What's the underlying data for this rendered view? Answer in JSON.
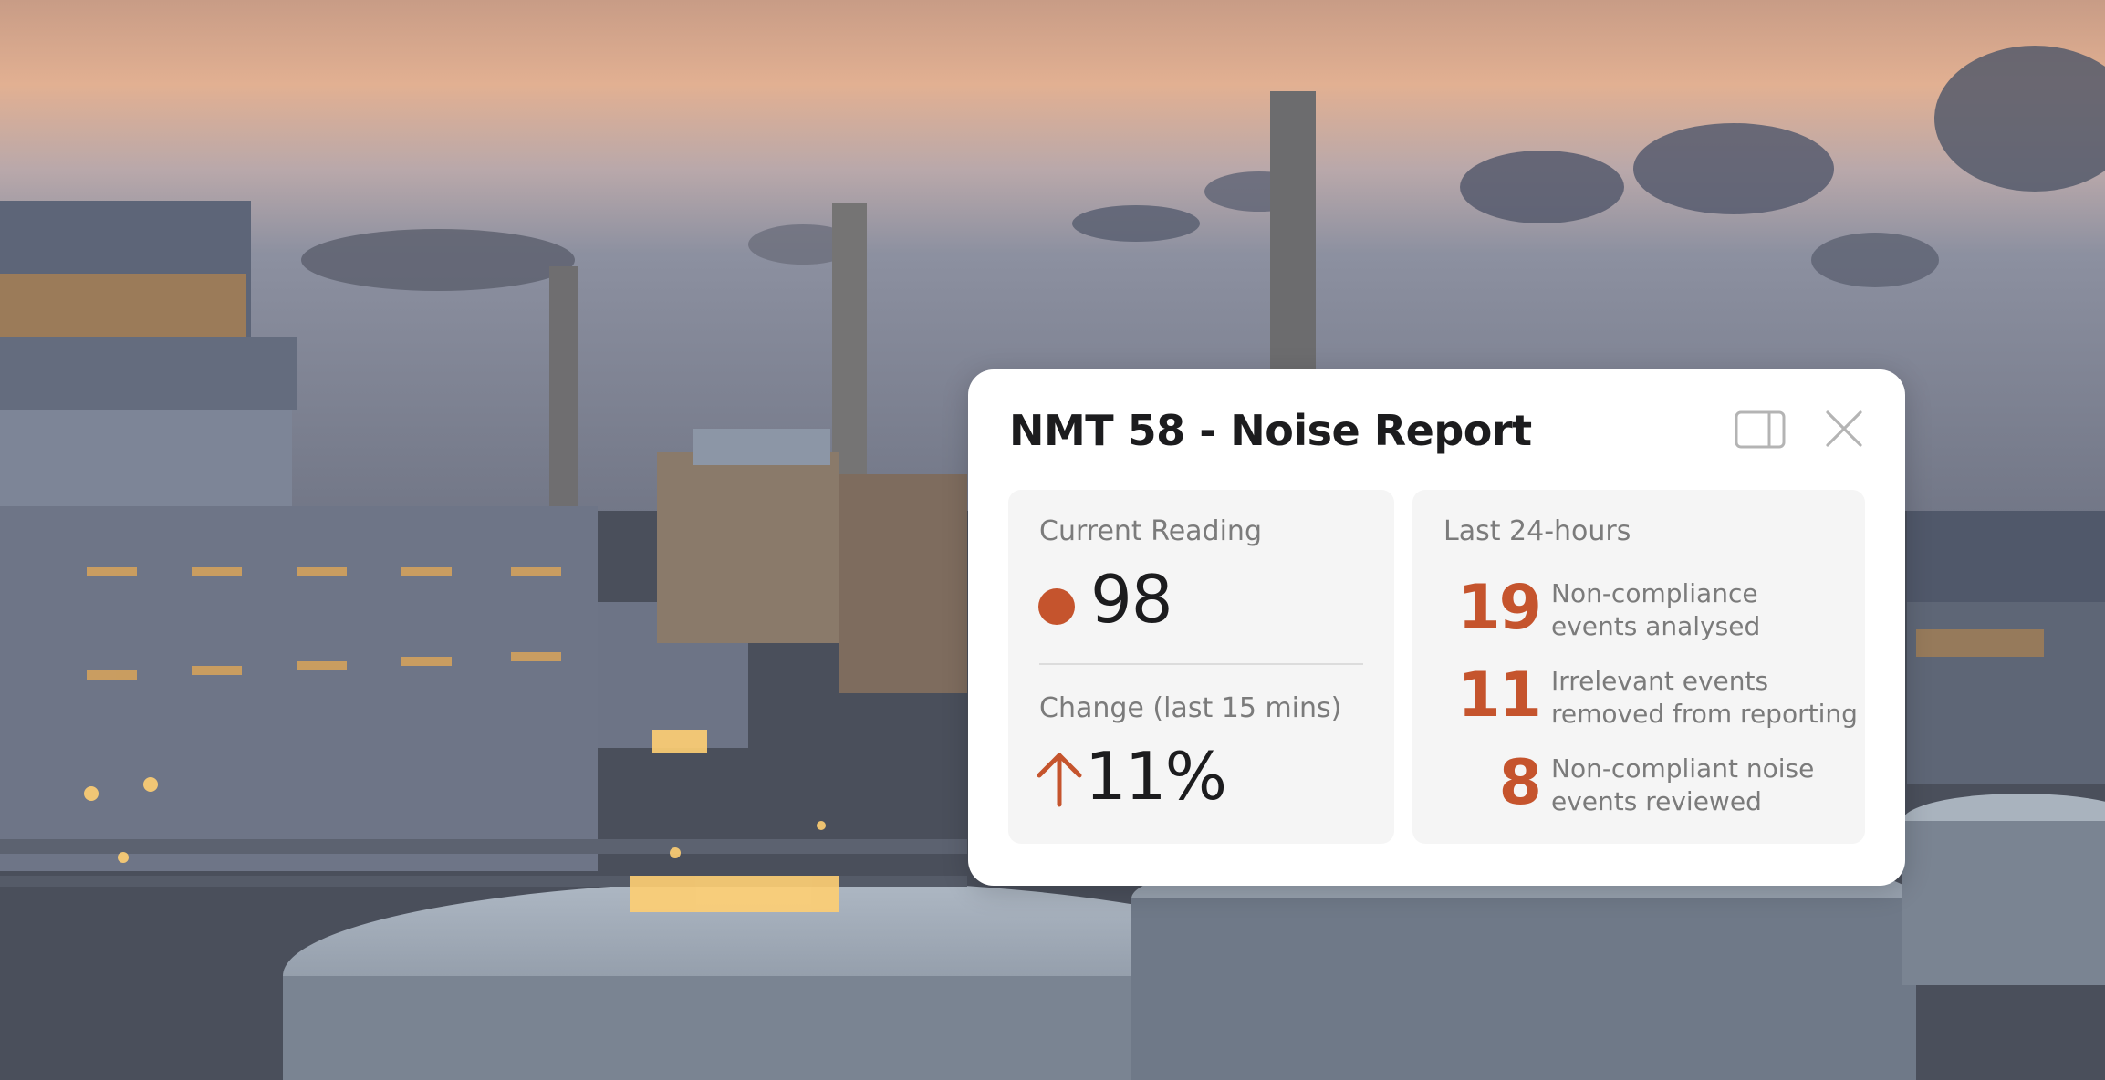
{
  "card": {
    "title": "NMT 58 - Noise Report",
    "icons": {
      "panel": "sidebar-panel-icon",
      "close": "close-icon"
    }
  },
  "current": {
    "label": "Current Reading",
    "value": "98",
    "status_color": "#c5542d",
    "change_label": "Change (last 15 mins)",
    "change_value": "11%",
    "change_direction": "up"
  },
  "last24": {
    "label": "Last 24-hours",
    "stats": [
      {
        "number": "19",
        "line1": "Non-compliance",
        "line2": "events analysed"
      },
      {
        "number": "11",
        "line1": "Irrelevant events",
        "line2": "removed from reporting"
      },
      {
        "number": "8",
        "line1": "Non-compliant noise",
        "line2": "events reviewed"
      }
    ]
  },
  "colors": {
    "accent": "#c5542d",
    "card_bg": "#ffffff",
    "panel_bg": "#f5f5f5",
    "text_primary": "#1c1c1e",
    "text_secondary": "#7b7b7b"
  }
}
